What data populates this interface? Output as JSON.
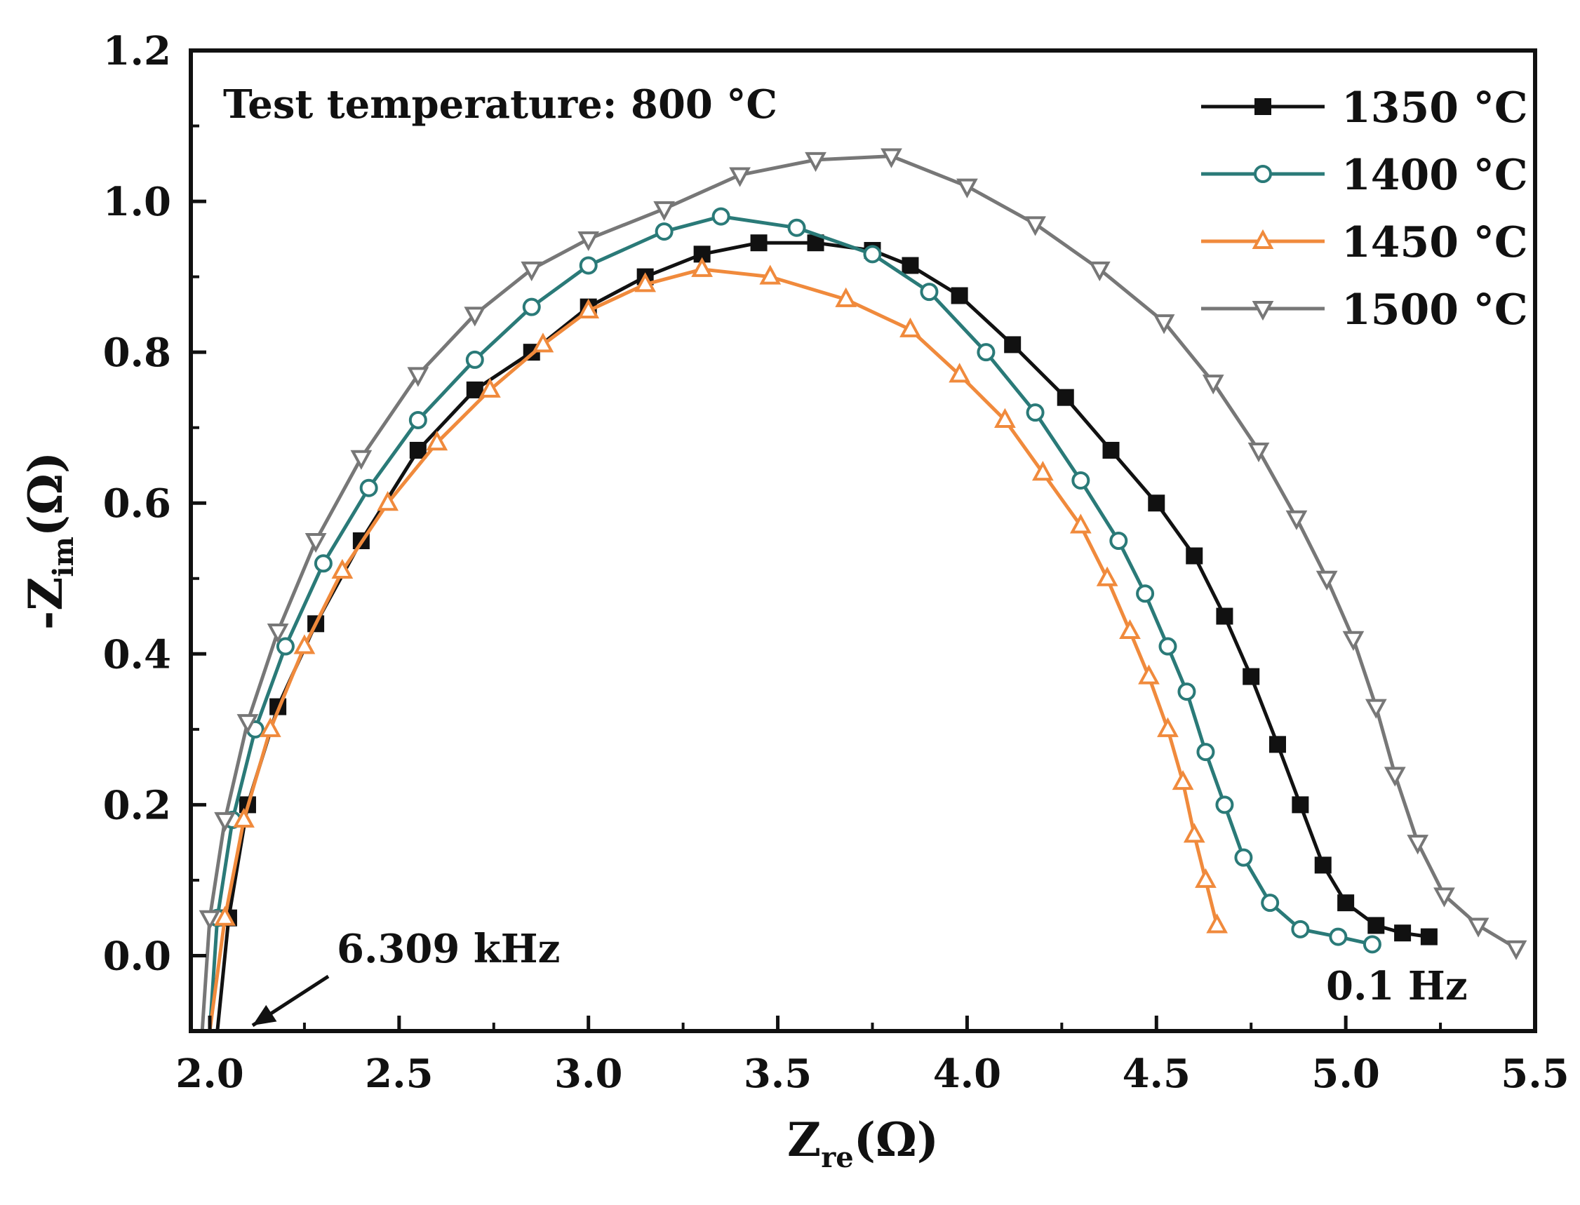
{
  "chart_data": {
    "type": "line",
    "title": "",
    "annotation_title": "Test temperature: 800 °C",
    "xlabel": {
      "main": "Z",
      "sub": "re",
      "unit": "(Ω)"
    },
    "ylabel": {
      "main": "-Z",
      "sub": "im",
      "unit": "(Ω)"
    },
    "xlim": [
      1.95,
      5.5
    ],
    "ylim": [
      -0.1,
      1.2
    ],
    "xticks": [
      "2.0",
      "2.5",
      "3.0",
      "3.5",
      "4.0",
      "4.5",
      "5.0",
      "5.5"
    ],
    "yticks": [
      "0.0",
      "0.2",
      "0.4",
      "0.6",
      "0.8",
      "1.0",
      "1.2"
    ],
    "legend_position": "top-right",
    "annotations": [
      {
        "text": "6.309 kHz",
        "x": 2.05,
        "y": -0.08
      },
      {
        "text": "0.1 Hz",
        "x": 5.2,
        "y": -0.05
      }
    ],
    "series": [
      {
        "name": "1350 °C",
        "color": "#111111",
        "marker": "square",
        "points": [
          [
            2.02,
            -0.1
          ],
          [
            2.05,
            0.05
          ],
          [
            2.1,
            0.2
          ],
          [
            2.18,
            0.33
          ],
          [
            2.28,
            0.44
          ],
          [
            2.4,
            0.55
          ],
          [
            2.55,
            0.67
          ],
          [
            2.7,
            0.75
          ],
          [
            2.85,
            0.8
          ],
          [
            3.0,
            0.86
          ],
          [
            3.15,
            0.9
          ],
          [
            3.3,
            0.93
          ],
          [
            3.45,
            0.945
          ],
          [
            3.6,
            0.945
          ],
          [
            3.75,
            0.935
          ],
          [
            3.85,
            0.915
          ],
          [
            3.98,
            0.875
          ],
          [
            4.12,
            0.81
          ],
          [
            4.26,
            0.74
          ],
          [
            4.38,
            0.67
          ],
          [
            4.5,
            0.6
          ],
          [
            4.6,
            0.53
          ],
          [
            4.68,
            0.45
          ],
          [
            4.75,
            0.37
          ],
          [
            4.82,
            0.28
          ],
          [
            4.88,
            0.2
          ],
          [
            4.94,
            0.12
          ],
          [
            5.0,
            0.07
          ],
          [
            5.08,
            0.04
          ],
          [
            5.15,
            0.03
          ],
          [
            5.22,
            0.025
          ]
        ]
      },
      {
        "name": "1400 °C",
        "color": "#2a7a78",
        "marker": "circle",
        "points": [
          [
            2.0,
            -0.1
          ],
          [
            2.02,
            0.05
          ],
          [
            2.06,
            0.18
          ],
          [
            2.12,
            0.3
          ],
          [
            2.2,
            0.41
          ],
          [
            2.3,
            0.52
          ],
          [
            2.42,
            0.62
          ],
          [
            2.55,
            0.71
          ],
          [
            2.7,
            0.79
          ],
          [
            2.85,
            0.86
          ],
          [
            3.0,
            0.915
          ],
          [
            3.2,
            0.96
          ],
          [
            3.35,
            0.98
          ],
          [
            3.55,
            0.965
          ],
          [
            3.75,
            0.93
          ],
          [
            3.9,
            0.88
          ],
          [
            4.05,
            0.8
          ],
          [
            4.18,
            0.72
          ],
          [
            4.3,
            0.63
          ],
          [
            4.4,
            0.55
          ],
          [
            4.47,
            0.48
          ],
          [
            4.53,
            0.41
          ],
          [
            4.58,
            0.35
          ],
          [
            4.63,
            0.27
          ],
          [
            4.68,
            0.2
          ],
          [
            4.73,
            0.13
          ],
          [
            4.8,
            0.07
          ],
          [
            4.88,
            0.035
          ],
          [
            4.98,
            0.025
          ],
          [
            5.07,
            0.015
          ]
        ]
      },
      {
        "name": "1450 °C",
        "color": "#f08a3c",
        "marker": "triangle-up",
        "points": [
          [
            2.0,
            -0.1
          ],
          [
            2.04,
            0.05
          ],
          [
            2.09,
            0.18
          ],
          [
            2.16,
            0.3
          ],
          [
            2.25,
            0.41
          ],
          [
            2.35,
            0.51
          ],
          [
            2.47,
            0.6
          ],
          [
            2.6,
            0.68
          ],
          [
            2.74,
            0.75
          ],
          [
            2.88,
            0.81
          ],
          [
            3.0,
            0.855
          ],
          [
            3.15,
            0.89
          ],
          [
            3.3,
            0.91
          ],
          [
            3.48,
            0.9
          ],
          [
            3.68,
            0.87
          ],
          [
            3.85,
            0.83
          ],
          [
            3.98,
            0.77
          ],
          [
            4.1,
            0.71
          ],
          [
            4.2,
            0.64
          ],
          [
            4.3,
            0.57
          ],
          [
            4.37,
            0.5
          ],
          [
            4.43,
            0.43
          ],
          [
            4.48,
            0.37
          ],
          [
            4.53,
            0.3
          ],
          [
            4.57,
            0.23
          ],
          [
            4.6,
            0.16
          ],
          [
            4.63,
            0.1
          ],
          [
            4.66,
            0.04
          ]
        ]
      },
      {
        "name": "1500 °C",
        "color": "#777777",
        "marker": "triangle-down",
        "points": [
          [
            1.98,
            -0.1
          ],
          [
            2.0,
            0.05
          ],
          [
            2.04,
            0.18
          ],
          [
            2.1,
            0.31
          ],
          [
            2.18,
            0.43
          ],
          [
            2.28,
            0.55
          ],
          [
            2.4,
            0.66
          ],
          [
            2.55,
            0.77
          ],
          [
            2.7,
            0.85
          ],
          [
            2.85,
            0.91
          ],
          [
            3.0,
            0.95
          ],
          [
            3.2,
            0.99
          ],
          [
            3.4,
            1.035
          ],
          [
            3.6,
            1.055
          ],
          [
            3.8,
            1.06
          ],
          [
            4.0,
            1.02
          ],
          [
            4.18,
            0.97
          ],
          [
            4.35,
            0.91
          ],
          [
            4.52,
            0.84
          ],
          [
            4.65,
            0.76
          ],
          [
            4.77,
            0.67
          ],
          [
            4.87,
            0.58
          ],
          [
            4.95,
            0.5
          ],
          [
            5.02,
            0.42
          ],
          [
            5.08,
            0.33
          ],
          [
            5.13,
            0.24
          ],
          [
            5.19,
            0.15
          ],
          [
            5.26,
            0.08
          ],
          [
            5.35,
            0.04
          ],
          [
            5.45,
            0.01
          ]
        ]
      }
    ]
  }
}
